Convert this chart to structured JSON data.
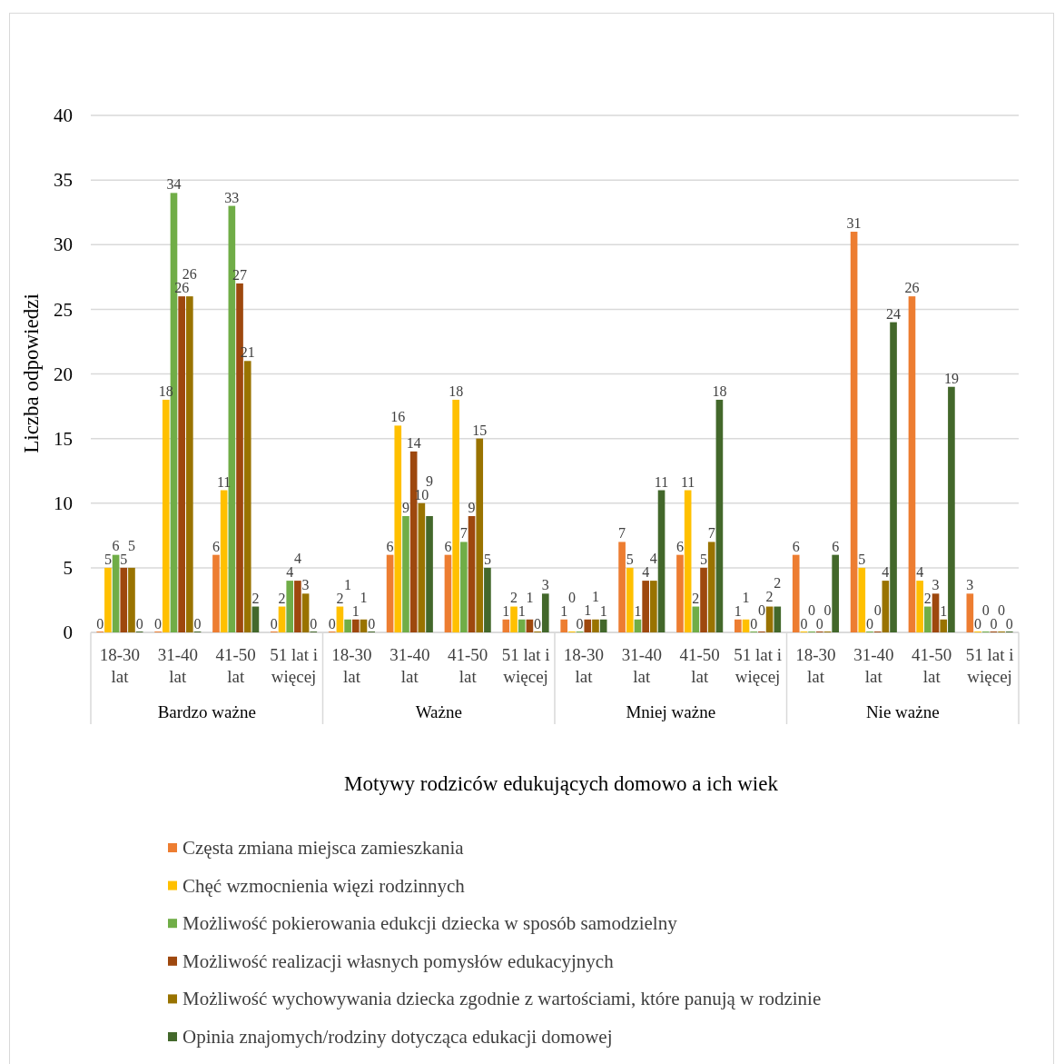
{
  "chart_data": {
    "type": "bar",
    "xlabel": "Motywy rodziców edukujących domowo a ich wiek",
    "ylabel": "Liczba odpowiedzi",
    "categories": [
      "18-30 lat",
      "31-40 lat",
      "41-50 lat",
      "51 lat i więcej",
      "18-30 lat",
      "31-40 lat",
      "41-50 lat",
      "51 lat i więcej",
      "18-30 lat",
      "31-40 lat",
      "41-50 lat",
      "51 lat i więcej",
      "18-30 lat",
      "31-40 lat",
      "41-50 lat",
      "51 lat i więcej"
    ],
    "annotations": [
      "Bardzo ważne",
      "Ważne",
      "Mniej ważne",
      "Nie ważne"
    ],
    "series": [
      {
        "name": "Częsta zmiana miejsca zamieszkania",
        "color": "#ed7d31",
        "values": [
          0,
          0,
          6,
          0,
          0,
          6,
          6,
          1,
          1,
          7,
          6,
          1,
          6,
          31,
          26,
          3
        ]
      },
      {
        "name": "Chęć wzmocnienia więzi rodzinnych",
        "color": "#ffc000",
        "values": [
          5,
          18,
          11,
          2,
          2,
          16,
          18,
          2,
          0,
          5,
          11,
          1,
          0,
          5,
          4,
          0
        ]
      },
      {
        "name": "Możliwość pokierowania edukcji dziecka w sposób samodzielny",
        "color": "#70ad47",
        "values": [
          6,
          34,
          33,
          4,
          1,
          9,
          7,
          1,
          0,
          1,
          2,
          0,
          0,
          0,
          2,
          0
        ]
      },
      {
        "name": "Możliwość realizacji własnych pomysłów edukacyjnych",
        "color": "#9e480e",
        "values": [
          5,
          26,
          27,
          4,
          1,
          14,
          9,
          1,
          1,
          4,
          5,
          0,
          0,
          0,
          3,
          0
        ]
      },
      {
        "name": "Możliwość wychowywania dziecka zgodnie z wartościami, które panują w rodzinie",
        "color": "#997300",
        "values": [
          5,
          26,
          21,
          3,
          1,
          10,
          15,
          0,
          1,
          4,
          7,
          2,
          0,
          4,
          1,
          0
        ]
      },
      {
        "name": "Opinia znajomych/rodziny dotycząca edukacji domowej",
        "color": "#43682b",
        "values": [
          0,
          0,
          2,
          0,
          0,
          9,
          5,
          3,
          1,
          11,
          18,
          2,
          6,
          24,
          19,
          0
        ]
      }
    ],
    "ylim": [
      0,
      40
    ],
    "yticks": [
      0,
      5,
      10,
      15,
      20,
      25,
      30,
      35,
      40
    ],
    "grid": "y",
    "legend": "bottom",
    "data_labels": true
  }
}
